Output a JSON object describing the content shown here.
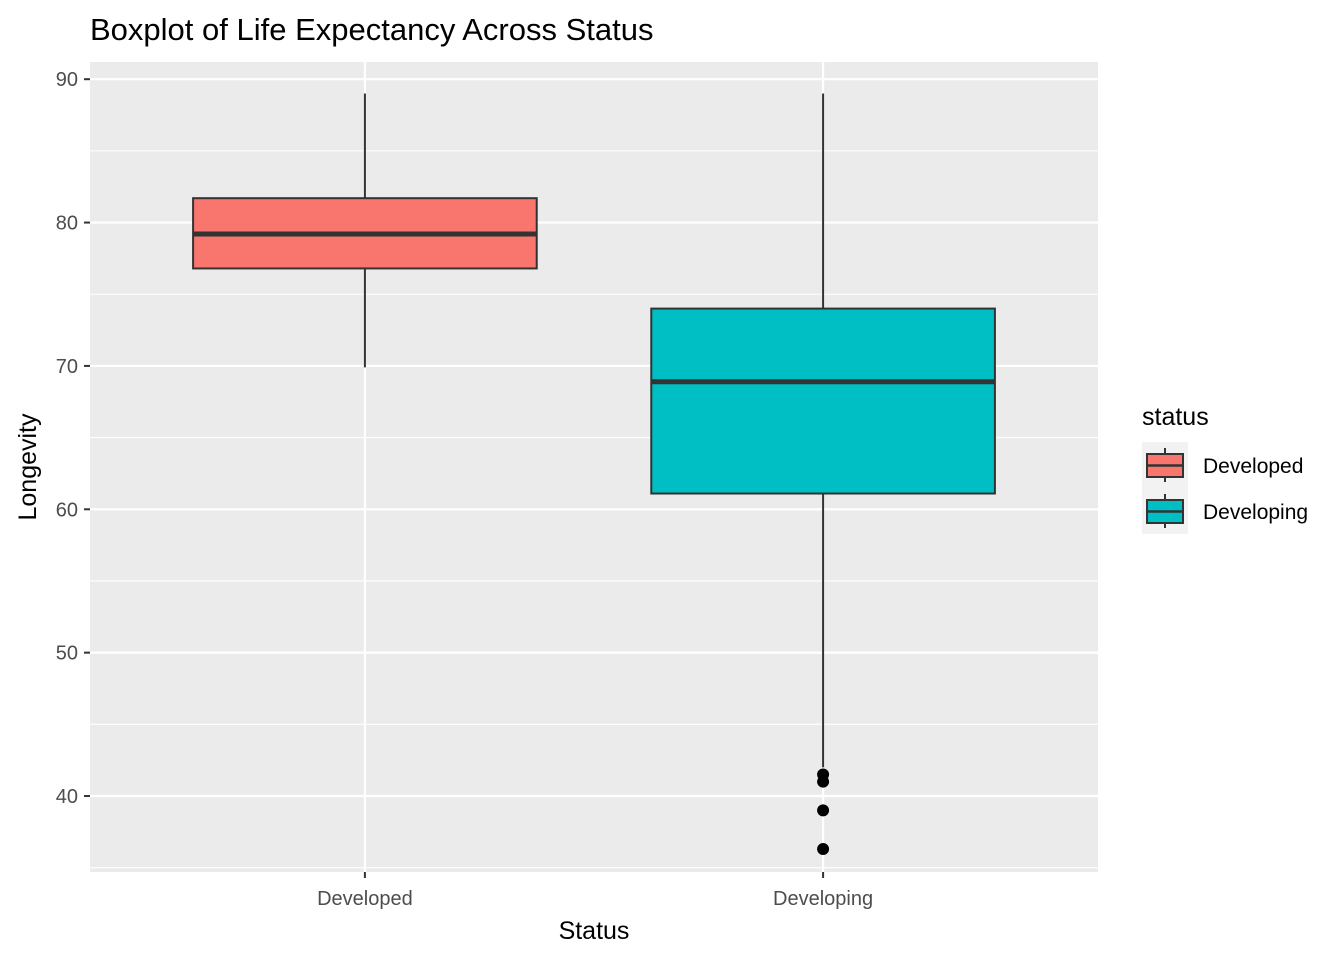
{
  "chart_data": {
    "type": "boxplot",
    "title": "Boxplot of Life Expectancy Across Status",
    "xlabel": "Status",
    "ylabel": "Longevity",
    "ylim": [
      34.7,
      91.2
    ],
    "y_ticks": [
      40,
      50,
      60,
      70,
      80,
      90
    ],
    "y_minor_ticks": [
      35,
      45,
      55,
      65,
      75,
      85
    ],
    "categories": [
      "Developed",
      "Developing"
    ],
    "grid": true,
    "legend": {
      "title": "status",
      "position": "right",
      "entries": [
        {
          "label": "Developed",
          "color": "#F8766D"
        },
        {
          "label": "Developing",
          "color": "#00BFC4"
        }
      ]
    },
    "boxes": [
      {
        "category": "Developed",
        "min": 69.9,
        "q1": 76.8,
        "median": 79.2,
        "q3": 81.7,
        "max": 89.0,
        "outliers": [],
        "color": "#F8766D"
      },
      {
        "category": "Developing",
        "min": 42.0,
        "q1": 61.1,
        "median": 68.9,
        "q3": 74.0,
        "max": 89.0,
        "outliers": [
          41.5,
          41.0,
          39.0,
          36.3
        ],
        "color": "#00BFC4"
      }
    ],
    "colors": {
      "panel_background": "#EBEBEB",
      "grid": "#FFFFFF",
      "box_outline": "#333333",
      "outlier": "#000000"
    }
  }
}
